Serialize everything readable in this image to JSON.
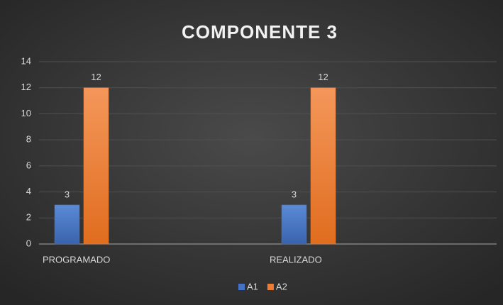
{
  "chart_data": {
    "type": "bar",
    "title": "COMPONENTE  3",
    "categories": [
      "PROGRAMADO",
      "REALIZADO"
    ],
    "series": [
      {
        "name": "A1",
        "color": "#4472c4",
        "values": [
          3,
          3
        ]
      },
      {
        "name": "A2",
        "color": "#ed7d31",
        "values": [
          12,
          12
        ]
      }
    ],
    "ylim": [
      0,
      14
    ],
    "yticks": [
      0,
      2,
      4,
      6,
      8,
      10,
      12,
      14
    ],
    "grid": true,
    "legend": "bottom"
  }
}
